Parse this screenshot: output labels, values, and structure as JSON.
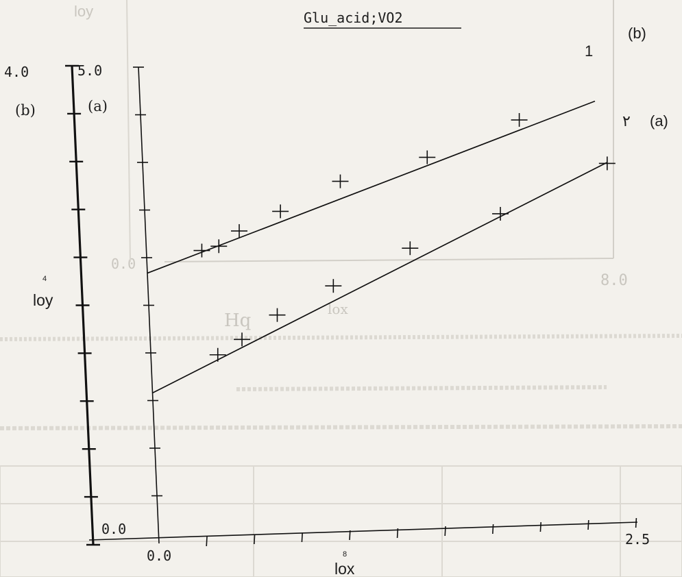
{
  "chart_data": {
    "type": "scatter",
    "title": "Glu_acid;VO2",
    "xlabel": "lox",
    "xlabel_exponent": "8",
    "ylabel": "loy",
    "ylabel_exponent": "4",
    "xlim": [
      0.0,
      2.5
    ],
    "x_tick_labels": [
      "0.0",
      "2.5"
    ],
    "y_axis_a": {
      "label": "(a)",
      "ylim": [
        0.0,
        5.0
      ],
      "tick_labels": [
        "0.0",
        "5.0"
      ]
    },
    "y_axis_b": {
      "label": "(b)",
      "ylim": [
        0.0,
        4.0
      ],
      "tick_labels": [
        "4.0"
      ]
    },
    "series": [
      {
        "name": "1",
        "tag": "(b)",
        "axis": "b",
        "points": [
          {
            "x": 0.29,
            "y": 2.44
          },
          {
            "x": 0.38,
            "y": 2.47
          },
          {
            "x": 0.49,
            "y": 2.59
          },
          {
            "x": 0.71,
            "y": 2.74
          },
          {
            "x": 1.03,
            "y": 2.97
          },
          {
            "x": 1.49,
            "y": 3.14
          },
          {
            "x": 1.98,
            "y": 3.42
          }
        ],
        "fit": {
          "x": [
            0.0,
            2.38
          ],
          "y": [
            2.27,
            3.55
          ]
        }
      },
      {
        "name": "۲",
        "tag": "(a)",
        "axis": "a",
        "points": [
          {
            "x": 0.35,
            "y": 1.95
          },
          {
            "x": 0.48,
            "y": 2.1
          },
          {
            "x": 0.67,
            "y": 2.34
          },
          {
            "x": 0.97,
            "y": 2.62
          },
          {
            "x": 1.38,
            "y": 2.98
          },
          {
            "x": 1.86,
            "y": 3.3
          },
          {
            "x": 2.43,
            "y": 3.78
          }
        ],
        "fit": {
          "x": [
            0.0,
            2.43
          ],
          "y": [
            1.58,
            3.79
          ]
        }
      }
    ],
    "legend": "series labels at right end of lines"
  },
  "background": {
    "color": "#f3f1ec",
    "ghost_text": [
      "loy",
      "Hq",
      "lox",
      "8.0",
      "0.0"
    ]
  }
}
